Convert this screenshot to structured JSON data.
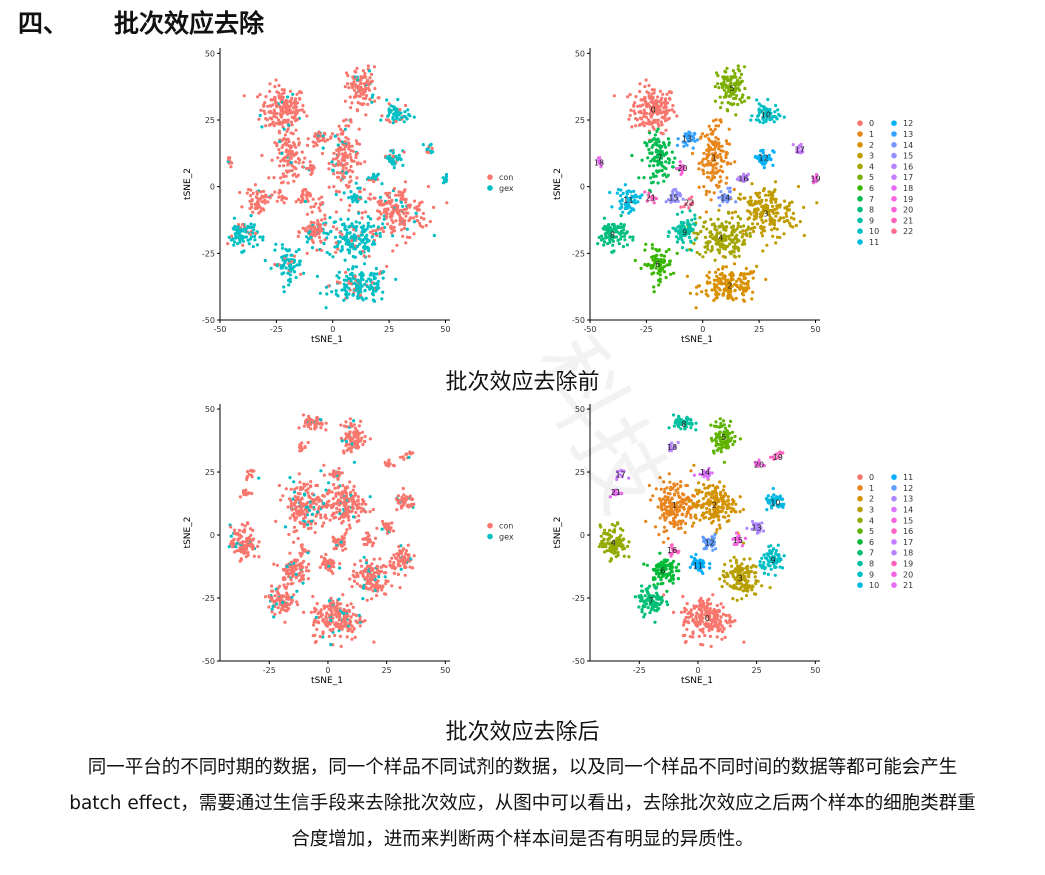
{
  "heading": {
    "number": "四、",
    "title": "批次效应去除"
  },
  "captions": {
    "before": "批次效应去除前",
    "after": "批次效应去除后"
  },
  "paragraph": [
    "同一平台的不同时期的数据，同一个样品不同试剂的数据，以及同一个样品不同时间的数据等都可能会产生",
    "batch effect，需要通过生信手段来去除批次效应，从图中可以看出，去除批次效应之后两个样本的细胞类群重",
    "合度增加，进而来判断两个样本间是否有明显的异质性。"
  ],
  "watermark": {
    "text": "科技"
  },
  "chart_data": [
    {
      "type": "scatter",
      "title": "",
      "xlabel": "tSNE_1",
      "ylabel": "tSNE_2",
      "xlim": [
        -50,
        52
      ],
      "ylim": [
        -50,
        52
      ],
      "xticks": [
        -50,
        -25,
        0,
        25,
        50
      ],
      "yticks": [
        -50,
        -25,
        0,
        25,
        50
      ],
      "legend": "right",
      "groups": [
        {
          "name": "con",
          "color": "#F8766D"
        },
        {
          "name": "gex",
          "color": "#00BFC4"
        }
      ]
    },
    {
      "type": "scatter",
      "title": "",
      "xlabel": "tSNE_1",
      "ylabel": "tSNE_2",
      "xlim": [
        -50,
        52
      ],
      "ylim": [
        -50,
        52
      ],
      "xticks": [
        -50,
        -25,
        0,
        25,
        50
      ],
      "yticks": [
        -50,
        -25,
        0,
        25,
        50
      ],
      "legend": "right",
      "clusters": [
        {
          "name": "0",
          "x": -22,
          "y": 29,
          "color": "#F8766D"
        },
        {
          "name": "1",
          "x": 5,
          "y": 11,
          "color": "#E7861B"
        },
        {
          "name": "2",
          "x": 12,
          "y": -37,
          "color": "#D89000"
        },
        {
          "name": "3",
          "x": 28,
          "y": -10,
          "color": "#C09B00"
        },
        {
          "name": "4",
          "x": 8,
          "y": -19,
          "color": "#A3A500"
        },
        {
          "name": "5",
          "x": 13,
          "y": 37,
          "color": "#7CAE00"
        },
        {
          "name": "6",
          "x": -20,
          "y": -29,
          "color": "#39B600"
        },
        {
          "name": "7",
          "x": -19,
          "y": 11,
          "color": "#00BB4E"
        },
        {
          "name": "8",
          "x": -40,
          "y": -18,
          "color": "#00BF7D"
        },
        {
          "name": "9",
          "x": -8,
          "y": -17,
          "color": "#00C1A3"
        },
        {
          "name": "10",
          "x": 28,
          "y": 27,
          "color": "#00BFC4"
        },
        {
          "name": "11",
          "x": -33,
          "y": -5,
          "color": "#00BAE0"
        },
        {
          "name": "12",
          "x": 27,
          "y": 11,
          "color": "#00B0F6"
        },
        {
          "name": "13",
          "x": -7,
          "y": 18,
          "color": "#35A2FF"
        },
        {
          "name": "14",
          "x": 10,
          "y": -4,
          "color": "#7997FF"
        },
        {
          "name": "15",
          "x": -13,
          "y": -4,
          "color": "#9590FF"
        },
        {
          "name": "16",
          "x": 18,
          "y": 3,
          "color": "#B983FF"
        },
        {
          "name": "17",
          "x": 43,
          "y": 14,
          "color": "#C77CFF"
        },
        {
          "name": "18",
          "x": -46,
          "y": 9,
          "color": "#E76BF3"
        },
        {
          "name": "19",
          "x": 50,
          "y": 3,
          "color": "#F564E3"
        },
        {
          "name": "20",
          "x": -9,
          "y": 7,
          "color": "#FA62DB"
        },
        {
          "name": "21",
          "x": -23,
          "y": -4,
          "color": "#FF62BC"
        },
        {
          "name": "22",
          "x": -6,
          "y": -6,
          "color": "#FF6C91"
        }
      ]
    },
    {
      "type": "scatter",
      "title": "",
      "xlabel": "tSNE_1",
      "ylabel": "tSNE_2",
      "xlim": [
        -46,
        52
      ],
      "ylim": [
        -50,
        52
      ],
      "xticks": [
        -25,
        0,
        25,
        50
      ],
      "yticks": [
        -50,
        -25,
        0,
        25,
        50
      ],
      "legend": "right",
      "groups": [
        {
          "name": "con",
          "color": "#F8766D"
        },
        {
          "name": "gex",
          "color": "#00BFC4"
        }
      ]
    },
    {
      "type": "scatter",
      "title": "",
      "xlabel": "tSNE_1",
      "ylabel": "tSNE_2",
      "xlim": [
        -46,
        52
      ],
      "ylim": [
        -50,
        52
      ],
      "xticks": [
        -25,
        0,
        25,
        50
      ],
      "yticks": [
        -50,
        -25,
        0,
        25,
        50
      ],
      "legend": "right",
      "clusters": [
        {
          "name": "0",
          "x": 4,
          "y": -33,
          "color": "#F8766D"
        },
        {
          "name": "1",
          "x": -10,
          "y": 12,
          "color": "#E8851F"
        },
        {
          "name": "2",
          "x": 7,
          "y": 12,
          "color": "#D39200"
        },
        {
          "name": "3",
          "x": 18,
          "y": -17,
          "color": "#B79F00"
        },
        {
          "name": "4",
          "x": -36,
          "y": -3,
          "color": "#93AA00"
        },
        {
          "name": "5",
          "x": 11,
          "y": 39,
          "color": "#5EB300"
        },
        {
          "name": "6",
          "x": -15,
          "y": -14,
          "color": "#00BA38"
        },
        {
          "name": "7",
          "x": -20,
          "y": -26,
          "color": "#00BF74"
        },
        {
          "name": "8",
          "x": -6,
          "y": 44,
          "color": "#00C19F"
        },
        {
          "name": "9",
          "x": 32,
          "y": -10,
          "color": "#00BFC4"
        },
        {
          "name": "10",
          "x": 33,
          "y": 13,
          "color": "#00B9E3"
        },
        {
          "name": "11",
          "x": 0,
          "y": -12,
          "color": "#00ADFA"
        },
        {
          "name": "12",
          "x": 5,
          "y": -3,
          "color": "#619CFF"
        },
        {
          "name": "13",
          "x": 25,
          "y": 3,
          "color": "#AE87FF"
        },
        {
          "name": "14",
          "x": 3,
          "y": 25,
          "color": "#DB72FB"
        },
        {
          "name": "15",
          "x": 17,
          "y": -2,
          "color": "#F564E3"
        },
        {
          "name": "16",
          "x": -11,
          "y": -6,
          "color": "#FF61C3"
        },
        {
          "name": "17",
          "x": -33,
          "y": 24,
          "color": "#C77CFF"
        },
        {
          "name": "18",
          "x": -11,
          "y": 35,
          "color": "#B983FF"
        },
        {
          "name": "19",
          "x": 34,
          "y": 31,
          "color": "#FF62BC"
        },
        {
          "name": "20",
          "x": 26,
          "y": 28,
          "color": "#F564E3"
        },
        {
          "name": "21",
          "x": -35,
          "y": 17,
          "color": "#E76BF3"
        }
      ]
    }
  ]
}
